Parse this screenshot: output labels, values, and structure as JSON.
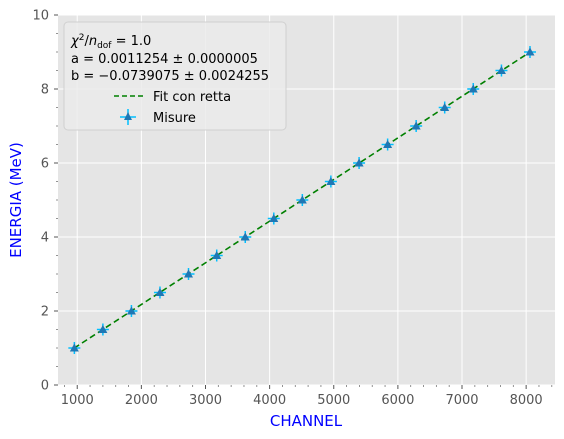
{
  "chart_data": {
    "type": "scatter",
    "title": "",
    "xlabel": "CHANNEL",
    "ylabel": "ENERGIA (MeV)",
    "xlim": [
      700,
      8450
    ],
    "ylim": [
      0,
      10
    ],
    "xticks": [
      1000,
      2000,
      3000,
      4000,
      5000,
      6000,
      7000,
      8000
    ],
    "yticks": [
      0,
      2,
      4,
      6,
      8,
      10
    ],
    "grid": true,
    "legend_position": "top-left",
    "annotation": {
      "chi_prefix": "χ",
      "chi_sup": "2",
      "chi_slash": "/",
      "chi_n": "n",
      "chi_sub": "dof",
      "chi_value": " = 1.0",
      "a_line": "a = 0.0011254 ± 0.0000005",
      "b_line": "b = −0.0739075 ± 0.0024255"
    },
    "series": [
      {
        "name": "Fit con retta",
        "kind": "line",
        "style": "dashed",
        "color": "#008000",
        "slope": 0.0011254,
        "intercept": -0.0739075,
        "x_range": [
          950,
          8050
        ]
      },
      {
        "name": "Misure",
        "kind": "scatter",
        "marker": "triangle",
        "color": "#1f77b4",
        "error_color": "#00bfff",
        "x": [
          955,
          1400,
          1845,
          2290,
          2735,
          3175,
          3620,
          4065,
          4510,
          4955,
          5395,
          5840,
          6285,
          6730,
          7175,
          7615,
          8060
        ],
        "y": [
          1.0,
          1.5,
          2.0,
          2.5,
          3.0,
          3.5,
          4.0,
          4.5,
          5.0,
          5.5,
          6.0,
          6.5,
          7.0,
          7.5,
          8.0,
          8.5,
          9.0
        ]
      }
    ]
  }
}
